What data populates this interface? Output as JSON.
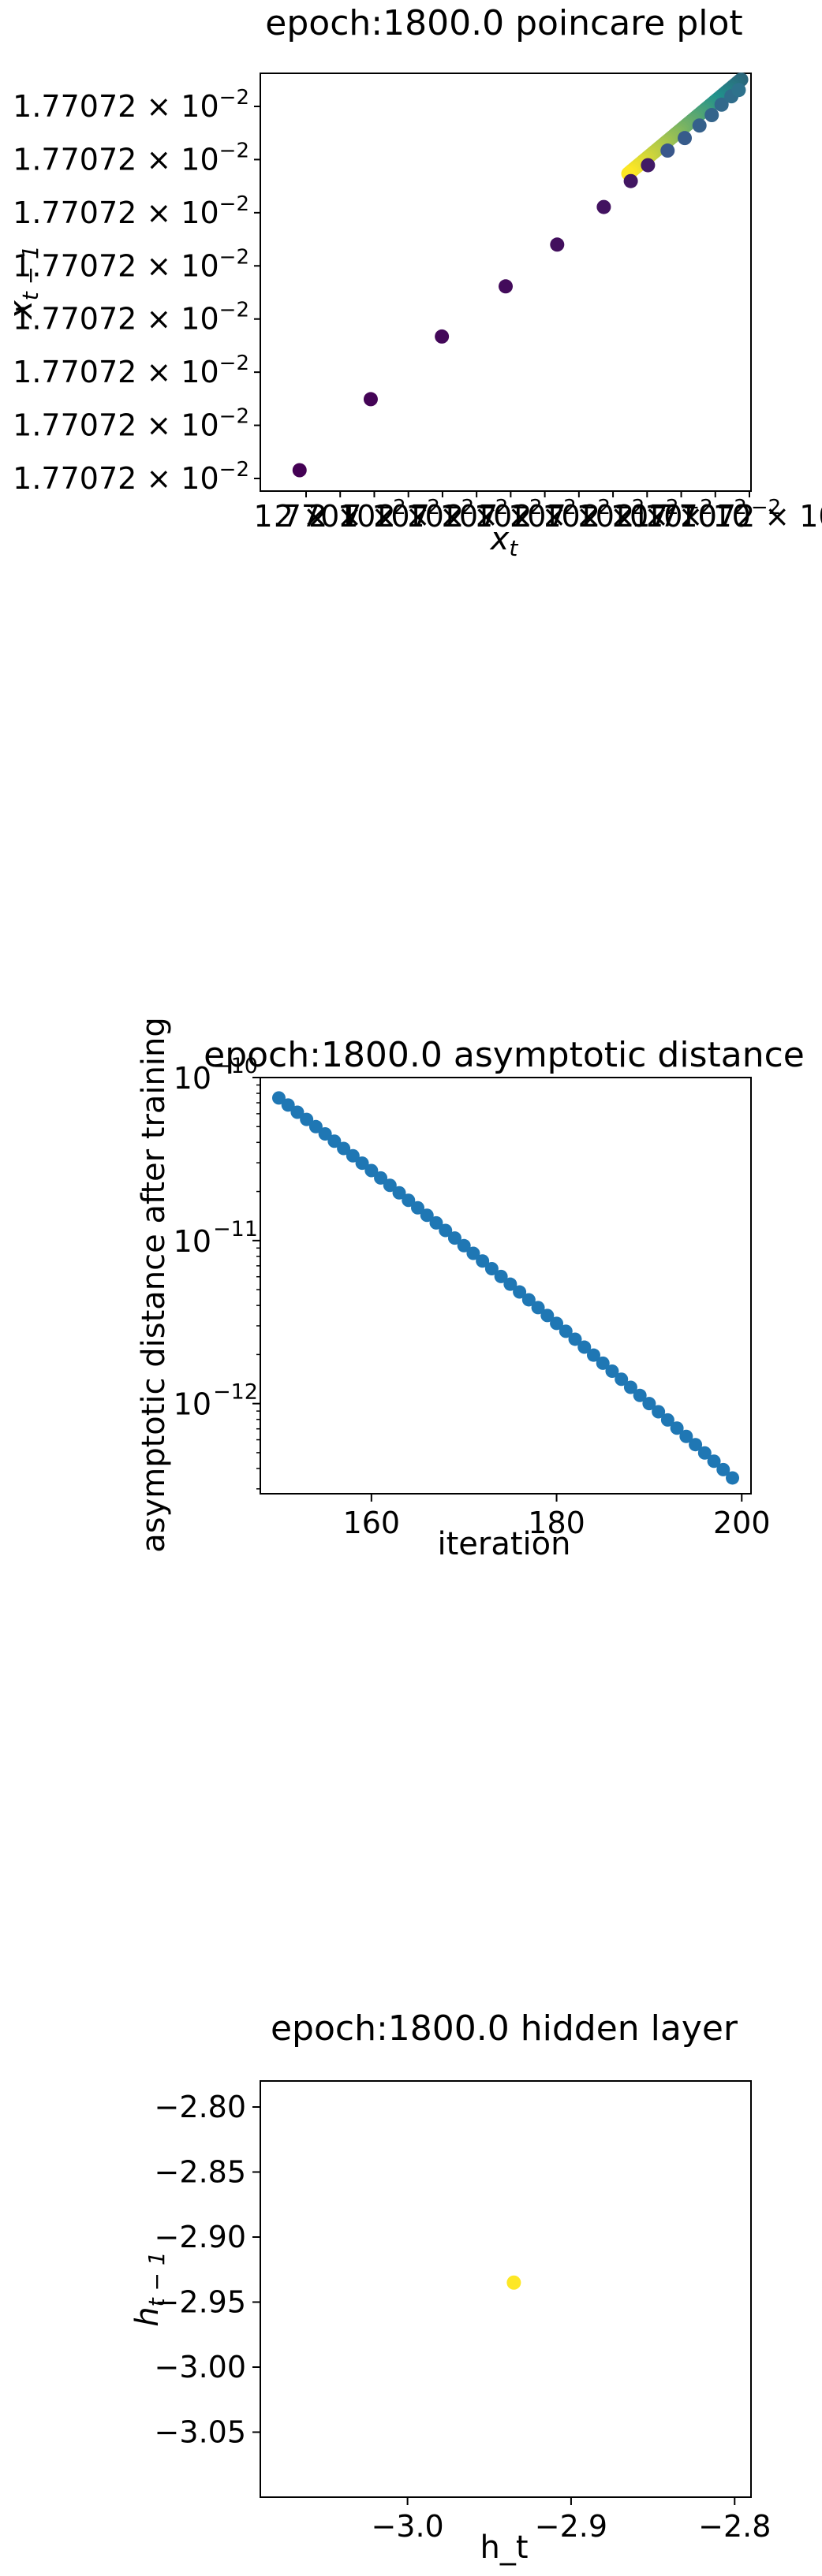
{
  "chart_data": [
    {
      "type": "scatter",
      "title": "epoch:1800.0 poincare plot",
      "xlabel": "x_t",
      "ylabel": "x_{t-1}",
      "x_tick_labels": [
        "1.7701",
        "2 × 10",
        "2 × 10",
        "7 × 10",
        "2 × 10",
        "7 × 10",
        "2 × 10",
        "7 × 10",
        "2 × 10",
        "7 × 10",
        "2 × 10",
        "2 × 10",
        "7 × 10",
        "1.77072 × 10"
      ],
      "y_tick_labels": [
        "1.77072 × 10",
        "1.77072 × 10",
        "1.77072 × 10",
        "1.77072 × 10",
        "1.77072 × 10",
        "1.77072 × 10",
        "1.77072 × 10",
        "1.77072 × 10"
      ],
      "tick_exponent": "−2",
      "colormap": "viridis",
      "colors": {
        "start": "#440154",
        "mid": "#21918c",
        "end": "#fde725"
      },
      "note_values": "points lie on diagonal x_{t-1} ≈ x_t; values expressed as fraction of axis range",
      "points": {
        "x": [
          0.08,
          0.225,
          0.37,
          0.5,
          0.605,
          0.7,
          0.755,
          0.79,
          0.83,
          0.865,
          0.895,
          0.92,
          0.94,
          0.96,
          0.975
        ],
        "y": [
          0.05,
          0.22,
          0.37,
          0.49,
          0.59,
          0.68,
          0.742,
          0.78,
          0.815,
          0.845,
          0.875,
          0.9,
          0.925,
          0.945,
          0.96
        ]
      },
      "dense_band": {
        "x_from": 0.75,
        "x_to": 0.98,
        "y_from": 0.76,
        "y_to": 0.985
      }
    },
    {
      "type": "scatter",
      "title": "epoch:1800.0 asymptotic distance",
      "xlabel": "iteration",
      "ylabel": "asymptotic distance after training",
      "yscale": "log",
      "xlim": [
        148,
        201
      ],
      "ylim": [
        2.8e-13,
        1e-10
      ],
      "x_tick_values": [
        160,
        180,
        200
      ],
      "x_tick_labels": [
        "160",
        "180",
        "200"
      ],
      "y_tick_labels": [
        {
          "base": "10",
          "exp": "−10"
        },
        {
          "base": "10",
          "exp": "−11"
        },
        {
          "base": "10",
          "exp": "−12"
        }
      ],
      "y_tick_values": [
        1e-10,
        1e-11,
        1e-12
      ],
      "marker_color": "#1f77b4",
      "x": [
        150,
        199
      ],
      "y_start": 7.5e-11,
      "y_end": 3.5e-13
    },
    {
      "type": "scatter",
      "title": "epoch:1800.0 hidden layer",
      "xlabel": "h_t",
      "ylabel": "h_{t-1}",
      "xlim": [
        -3.09,
        -2.79
      ],
      "ylim": [
        -3.1,
        -2.78
      ],
      "x_tick_values": [
        -3.0,
        -2.9,
        -2.8
      ],
      "x_tick_labels": [
        "−3.0",
        "−2.9",
        "−2.8"
      ],
      "y_tick_values": [
        -2.8,
        -2.85,
        -2.9,
        -2.95,
        -3.0,
        -3.05
      ],
      "y_tick_labels": [
        "−2.80",
        "−2.85",
        "−2.90",
        "−2.95",
        "−3.00",
        "−3.05"
      ],
      "marker_color": "#fde725",
      "point": {
        "x": -2.935,
        "y": -2.935
      }
    }
  ]
}
